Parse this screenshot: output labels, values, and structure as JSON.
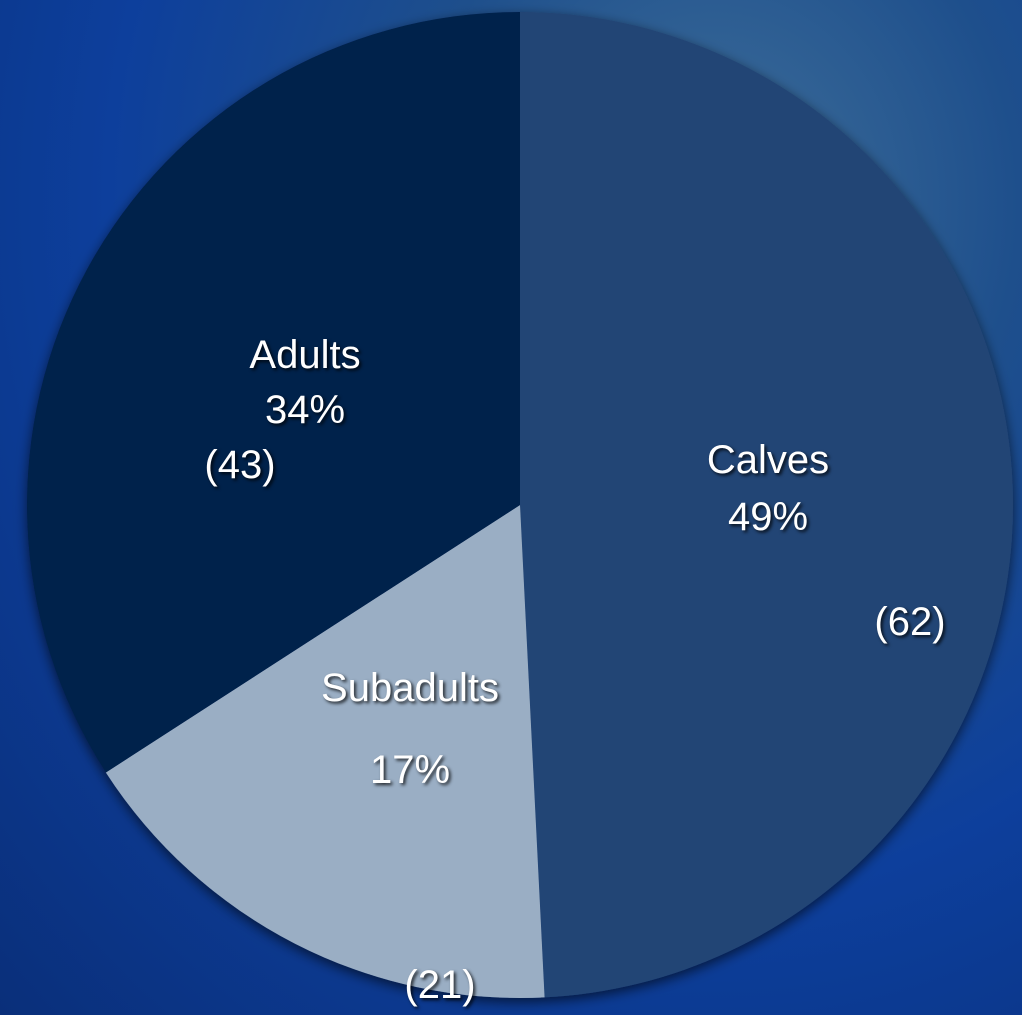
{
  "chart_data": {
    "type": "pie",
    "categories": [
      "Calves",
      "Subadults",
      "Adults"
    ],
    "values": [
      49,
      17,
      34
    ],
    "value_labels": [
      "49%",
      "17%",
      "34%"
    ],
    "counts": [
      62,
      21,
      43
    ],
    "count_labels": [
      "(62)",
      "(21)",
      "(43)"
    ],
    "colors": [
      "#234474",
      "#9aaec4",
      "#03204c"
    ],
    "start_angle": 0,
    "direction": "clockwise"
  }
}
